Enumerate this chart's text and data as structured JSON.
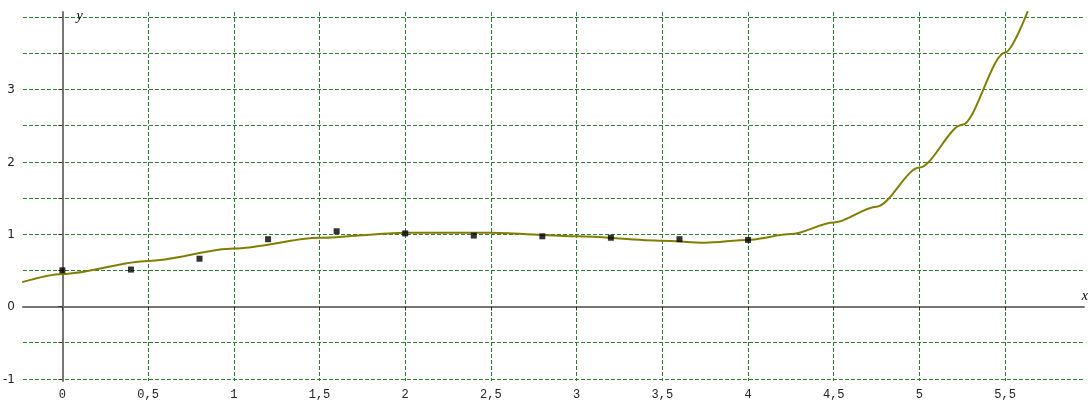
{
  "chart_data": {
    "type": "scatter",
    "xlabel": "x",
    "ylabel": "y",
    "xlim": [
      -0.23,
      5.96
    ],
    "ylim": [
      -1.03,
      4.07
    ],
    "xticks": [
      0,
      {
        "value": 0.5,
        "label": "0,5"
      },
      1,
      {
        "value": 1.5,
        "label": "1,5"
      },
      2,
      {
        "value": 2.5,
        "label": "2,5"
      },
      3,
      {
        "value": 3.5,
        "label": "3,5"
      },
      4,
      {
        "value": 4.5,
        "label": "4,5"
      },
      5,
      {
        "value": 5.5,
        "label": "5,5"
      }
    ],
    "yticks": [
      -1,
      {
        "value": -0.5,
        "label": null
      },
      0,
      {
        "value": 0.5,
        "label": null
      },
      1,
      {
        "value": 1.5,
        "label": null
      },
      2,
      {
        "value": 2.5,
        "label": null
      },
      3,
      {
        "value": 3.5,
        "label": null
      },
      {
        "value": 4,
        "label": null
      }
    ],
    "grid": true,
    "series": [
      {
        "type": "line",
        "color": "#808000",
        "marker": "none",
        "line_style": "solid",
        "x": [
          -0.23,
          0,
          0.5,
          1,
          1.5,
          2,
          2.5,
          3,
          3.5,
          3.75,
          4,
          4.25,
          4.5,
          4.75,
          5,
          5.25,
          5.5,
          5.63
        ],
        "values": [
          0.34,
          0.45,
          0.63,
          0.8,
          0.95,
          1.02,
          1.02,
          0.97,
          0.91,
          0.88,
          0.92,
          1.0,
          1.16,
          1.38,
          1.92,
          2.51,
          3.51,
          4.07
        ]
      },
      {
        "color": "#000000",
        "marker": "square",
        "x": [
          0,
          0.4,
          0.8,
          1.2,
          1.6,
          2,
          2.4,
          2.8,
          3.2,
          3.6,
          4
        ],
        "values": [
          0.5,
          0.51,
          0.66,
          0.93,
          1.04,
          1.01,
          0.98,
          0.97,
          0.95,
          0.93,
          0.92
        ]
      }
    ]
  }
}
